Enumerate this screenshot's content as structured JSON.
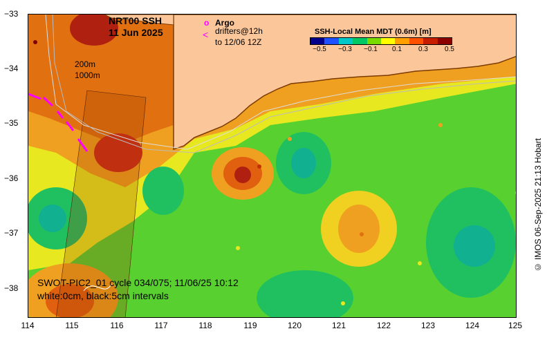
{
  "title": {
    "line1": "NRT00 SSH",
    "line2": "11 Jun 2025"
  },
  "legend": {
    "argo_symbol": "o",
    "argo_label": "Argo",
    "drifter_symbol": "<",
    "drifter_line1": "drifters@12h",
    "drifter_line2": "to 12/06 12Z"
  },
  "isobaths": {
    "shallow": "200m",
    "deep": "1000m"
  },
  "colorbar": {
    "title": "SSH-Local Mean MDT (0.6m) [m]",
    "ticks": [
      "−0.5",
      "−0.3",
      "−0.1",
      "0.1",
      "0.3",
      "0.5"
    ],
    "colors": [
      "#00008c",
      "#1e50ff",
      "#00c8c8",
      "#00c864",
      "#78dc00",
      "#ffff00",
      "#ffa000",
      "#ff5000",
      "#c81e00",
      "#8c0000"
    ]
  },
  "swot": {
    "line1": "SWOT-PIC2_01 cycle 034/075; 11/06/25 10:12",
    "line2": "white:0cm, black:5cm intervals"
  },
  "credit": "© IMOS 06-Sep-2025 21:13 Hobart",
  "axes": {
    "lat_labels": [
      "−33",
      "−34",
      "−35",
      "−36",
      "−37",
      "−38"
    ],
    "lon_labels": [
      "114",
      "115",
      "116",
      "117",
      "118",
      "119",
      "120",
      "121",
      "122",
      "123",
      "124",
      "125"
    ]
  },
  "colors": {
    "land": "#fbc79a",
    "coast": "#7a3a00",
    "ocean_mid": "#3fcf3f",
    "argo": "#ff00ff",
    "drifter": "#ff00ff"
  }
}
